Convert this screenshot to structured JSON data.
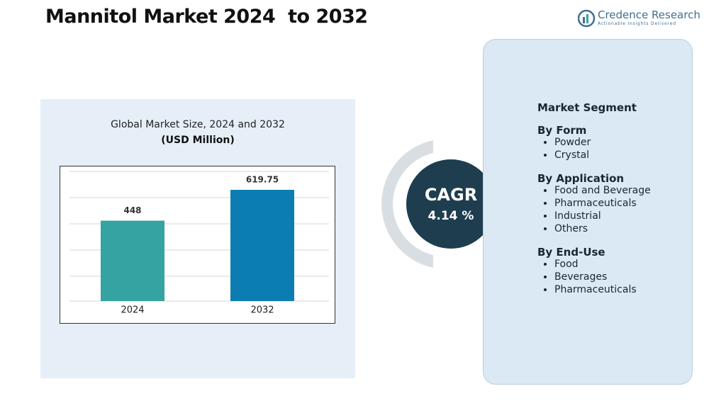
{
  "header": {
    "title": "Mannitol Market 2024  to 2032",
    "logo_name": "Credence Research",
    "logo_tagline": "Actionable Insights Delivered"
  },
  "chart_data": {
    "type": "bar",
    "title": "Global Market Size, 2024 and 2032",
    "subtitle": "(USD Million)",
    "categories": [
      "2024",
      "2032"
    ],
    "values": [
      448,
      619.75
    ],
    "colors": [
      "#35a3a1",
      "#0b7db3"
    ]
  },
  "cagr": {
    "label": "CAGR",
    "value": "4.14 %"
  },
  "segments": {
    "title": "Market Segment",
    "groups": [
      {
        "title": "By Form",
        "items": [
          "Powder",
          "Crystal"
        ]
      },
      {
        "title": "By Application",
        "items": [
          "Food and Beverage",
          "Pharmaceuticals",
          "Industrial",
          "Others"
        ]
      },
      {
        "title": "By End-Use",
        "items": [
          "Food",
          "Beverages",
          "Pharmaceuticals"
        ]
      }
    ]
  }
}
